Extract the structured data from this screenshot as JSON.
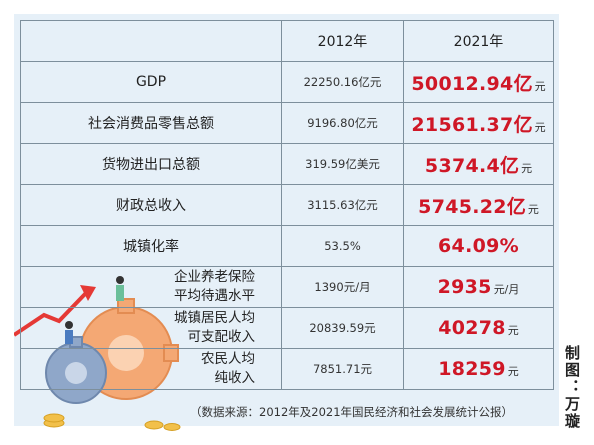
{
  "table": {
    "headers": [
      "",
      "2012年",
      "2021年"
    ],
    "rows": [
      {
        "label": "GDP",
        "v2012": "22250.16亿元",
        "v2021": "50012.94",
        "unit21": "亿",
        "unit21_small": "元"
      },
      {
        "label": "社会消费品零售总额",
        "v2012": "9196.80亿元",
        "v2021": "21561.37",
        "unit21": "亿",
        "unit21_small": "元"
      },
      {
        "label": "货物进出口总额",
        "v2012": "319.59亿美元",
        "v2021": "5374.4",
        "unit21": "亿",
        "unit21_small": "元"
      },
      {
        "label": "财政总收入",
        "v2012": "3115.63亿元",
        "v2021": "5745.22",
        "unit21": "亿",
        "unit21_small": "元"
      },
      {
        "label": "城镇化率",
        "v2012": "53.5%",
        "v2021": "64.09%",
        "unit21": "",
        "unit21_small": ""
      },
      {
        "label_line1": "企业养老保险",
        "label_line2": "平均待遇水平",
        "v2012": "1390元/月",
        "v2021": "2935",
        "unit21": "",
        "unit21_small": "元/月"
      },
      {
        "label_line1": "城镇居民人均",
        "label_line2": "可支配收入",
        "v2012": "20839.59元",
        "v2021": "40278",
        "unit21": "",
        "unit21_small": "元"
      },
      {
        "label_line1": "农民人均",
        "label_line2": "纯收入",
        "v2012": "7851.71元",
        "v2021": "18259",
        "unit21": "",
        "unit21_small": "元"
      }
    ]
  },
  "source_note": "（数据来源：2012年及2021年国民经济和社会发展统计公报）",
  "credit": "制图：万璇",
  "colors": {
    "highlight": "#cf1726",
    "panel": "#e6f0f8",
    "grid": "#7d8f9c"
  }
}
